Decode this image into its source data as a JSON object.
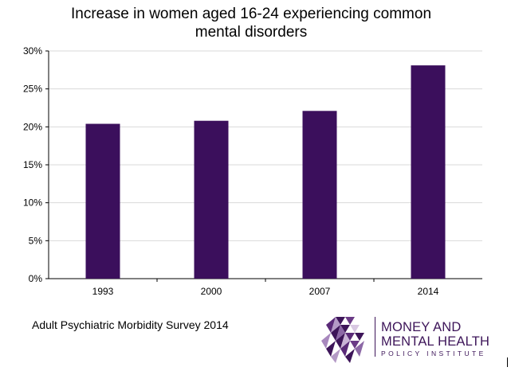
{
  "chart_data": {
    "type": "bar",
    "title_line1": "Increase in women aged 16-24 experiencing common",
    "title_line2": "mental disorders",
    "categories": [
      "1993",
      "2000",
      "2007",
      "2014"
    ],
    "values": [
      20.4,
      20.8,
      22.1,
      28.1
    ],
    "ylim": [
      0,
      30
    ],
    "y_ticks": [
      0,
      5,
      10,
      15,
      20,
      25,
      30
    ],
    "y_tick_labels": [
      "0%",
      "5%",
      "10%",
      "15%",
      "20%",
      "25%",
      "30%"
    ],
    "bar_color": "#3b0f5c",
    "grid": true,
    "xlabel": "",
    "ylabel": ""
  },
  "source": "Adult Psychiatric Morbidity Survey 2014",
  "logo": {
    "line1": "MONEY AND",
    "line2": "MENTAL HEALTH",
    "line3": "POLICY INSTITUTE",
    "color": "#3d1559"
  }
}
